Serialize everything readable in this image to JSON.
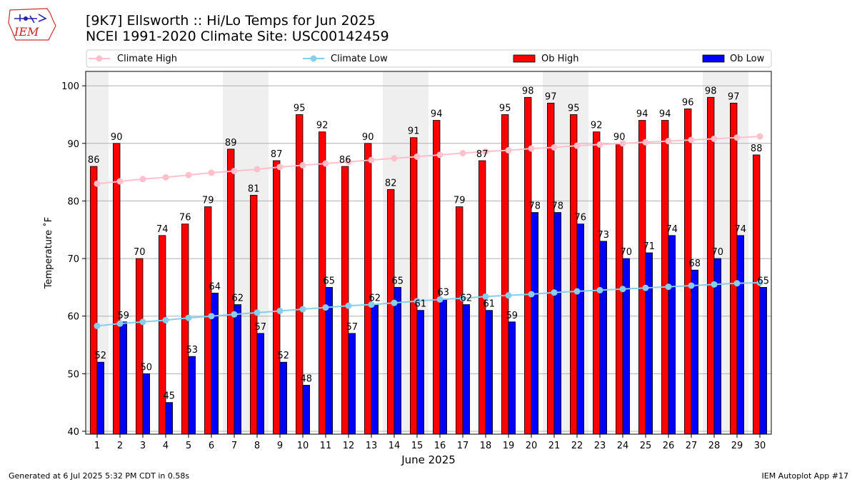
{
  "header": {
    "title_line1": "[9K7] Ellsworth :: Hi/Lo Temps for Jun 2025",
    "title_line2": "NCEI 1991-2020 Climate Site: USC00142459",
    "logo_text": "IEM"
  },
  "footer": {
    "left": "Generated at 6 Jul 2025 5:32 PM CDT in 0.58s",
    "right": "IEM Autoplot App #17"
  },
  "colors": {
    "ob_high": "#ff0000",
    "ob_low": "#0000ff",
    "climate_high": "#ffc0cb",
    "climate_low": "#87ceeb",
    "weekend_shade": "#efefef"
  },
  "chart_data": {
    "type": "bar",
    "xlabel": "June 2025",
    "ylabel": "Temperature ˚F",
    "ylim": [
      39.5,
      102.5
    ],
    "yticks": [
      40,
      50,
      60,
      70,
      80,
      90,
      100
    ],
    "grid": true,
    "legend_position": "top",
    "categories": [
      "1",
      "2",
      "3",
      "4",
      "5",
      "6",
      "7",
      "8",
      "9",
      "10",
      "11",
      "12",
      "13",
      "14",
      "15",
      "16",
      "17",
      "18",
      "19",
      "20",
      "21",
      "22",
      "23",
      "24",
      "25",
      "26",
      "27",
      "28",
      "29",
      "30"
    ],
    "shaded_days": [
      "1",
      "7",
      "8",
      "14",
      "15",
      "21",
      "22",
      "28",
      "29"
    ],
    "series": [
      {
        "name": "Climate High",
        "kind": "line",
        "values": [
          83.0,
          83.4,
          83.8,
          84.1,
          84.5,
          84.9,
          85.2,
          85.5,
          85.9,
          86.2,
          86.5,
          86.8,
          87.1,
          87.4,
          87.7,
          88.0,
          88.3,
          88.6,
          88.8,
          89.1,
          89.3,
          89.6,
          89.8,
          90.0,
          90.2,
          90.4,
          90.6,
          90.8,
          91.0,
          91.2
        ]
      },
      {
        "name": "Climate Low",
        "kind": "line",
        "values": [
          58.3,
          58.7,
          59.0,
          59.3,
          59.7,
          60.0,
          60.3,
          60.6,
          60.9,
          61.2,
          61.5,
          61.8,
          62.0,
          62.3,
          62.6,
          62.9,
          63.1,
          63.4,
          63.6,
          63.8,
          64.1,
          64.3,
          64.5,
          64.7,
          64.9,
          65.1,
          65.3,
          65.5,
          65.7,
          65.8
        ]
      },
      {
        "name": "Ob High",
        "kind": "bar",
        "values": [
          86,
          90,
          70,
          74,
          76,
          79,
          89,
          81,
          87,
          95,
          92,
          86,
          90,
          82,
          91,
          94,
          79,
          87,
          95,
          98,
          97,
          95,
          92,
          90,
          94,
          94,
          96,
          98,
          97,
          88
        ]
      },
      {
        "name": "Ob Low",
        "kind": "bar",
        "values": [
          52,
          59,
          50,
          45,
          53,
          64,
          62,
          57,
          52,
          48,
          65,
          57,
          62,
          65,
          61,
          63,
          62,
          61,
          59,
          78,
          78,
          76,
          73,
          70,
          71,
          74,
          68,
          70,
          74,
          65
        ]
      }
    ]
  }
}
